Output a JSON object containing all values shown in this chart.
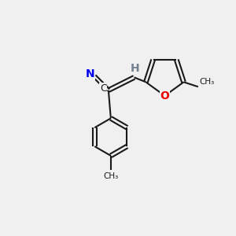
{
  "background_color": "#f0f0f0",
  "bond_color": "#1a1a1a",
  "nitrogen_color": "#0000ee",
  "oxygen_color": "#ee0000",
  "hydrogen_color": "#708090",
  "carbon_color": "#1a1a1a",
  "figsize": [
    3.0,
    3.0
  ],
  "dpi": 100,
  "xlim": [
    0,
    10
  ],
  "ylim": [
    0,
    10
  ]
}
